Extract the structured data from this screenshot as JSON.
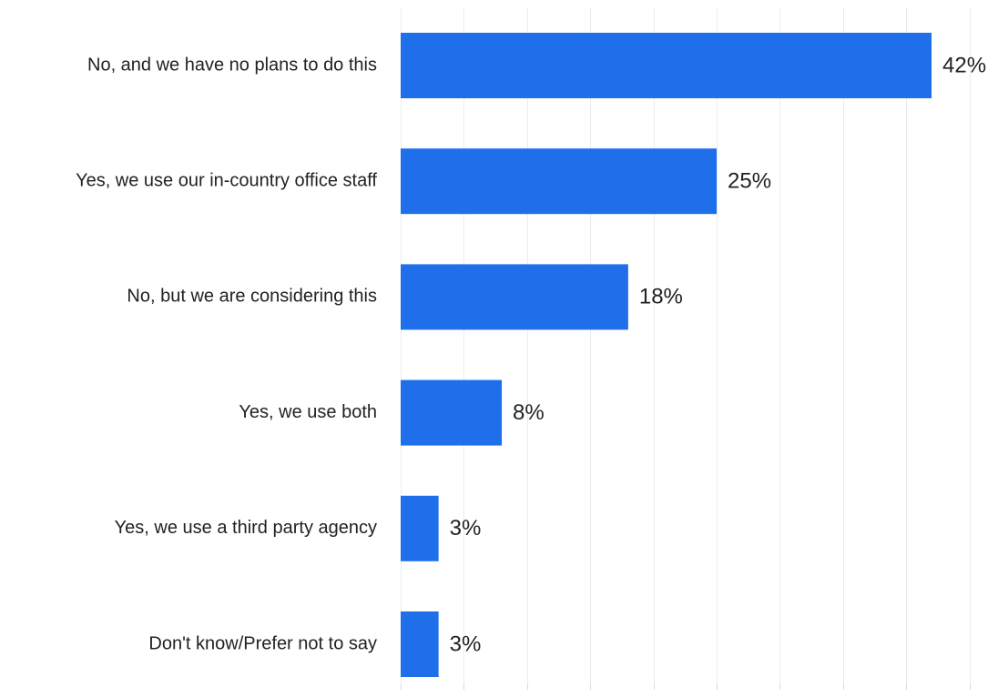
{
  "chart_data": {
    "type": "bar",
    "orientation": "horizontal",
    "categories": [
      "No, and we have no plans to do this",
      "Yes, we use our in-country office staff",
      "No, but we are considering this",
      "Yes, we use both",
      "Yes, we use a third party agency",
      "Don't know/Prefer not to say"
    ],
    "values": [
      42,
      25,
      18,
      8,
      3,
      3
    ],
    "value_labels": [
      "42%",
      "25%",
      "18%",
      "8%",
      "3%",
      "3%"
    ],
    "unit": "%",
    "xlim": [
      0,
      45
    ],
    "grid": true,
    "legend": "none",
    "bar_color": "#1f6feb"
  }
}
